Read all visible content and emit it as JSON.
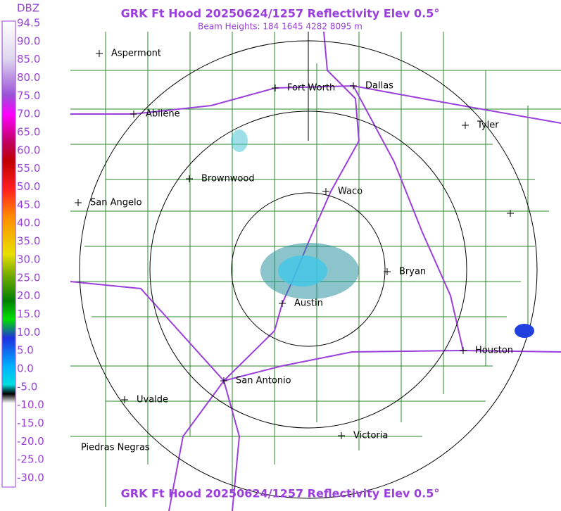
{
  "title": "GRK Ft Hood 20250624/1257 Reflectivity Elev 0.5°",
  "subtitle": "Beam Heights: 184 1645 4282 8095 m",
  "footer_title": "GRK Ft Hood 20250624/1257 Reflectivity Elev 0.5°",
  "legend": {
    "title": "DBZ",
    "labels": [
      "94.5",
      "90.0",
      "85.0",
      "80.0",
      "75.0",
      "70.0",
      "65.0",
      "60.0",
      "55.0",
      "50.0",
      "45.0",
      "40.0",
      "35.0",
      "30.0",
      "25.0",
      "20.0",
      "15.0",
      "10.0",
      "5.0",
      "0.0",
      "-5.0",
      "-10.0",
      "-15.0",
      "-20.0",
      "-25.0",
      "-30.0"
    ]
  },
  "cities": [
    {
      "label": "Aspermont"
    },
    {
      "label": "Abilene"
    },
    {
      "label": "Fort Worth"
    },
    {
      "label": "Dallas"
    },
    {
      "label": "Tyler"
    },
    {
      "label": "Brownwood"
    },
    {
      "label": "Waco"
    },
    {
      "label": "San Angelo"
    },
    {
      "label": "Bryan"
    },
    {
      "label": "Austin"
    },
    {
      "label": "Houston"
    },
    {
      "label": "San Antonio"
    },
    {
      "label": "Uvalde"
    },
    {
      "label": "Victoria"
    },
    {
      "label": "Piedras Negras"
    }
  ]
}
